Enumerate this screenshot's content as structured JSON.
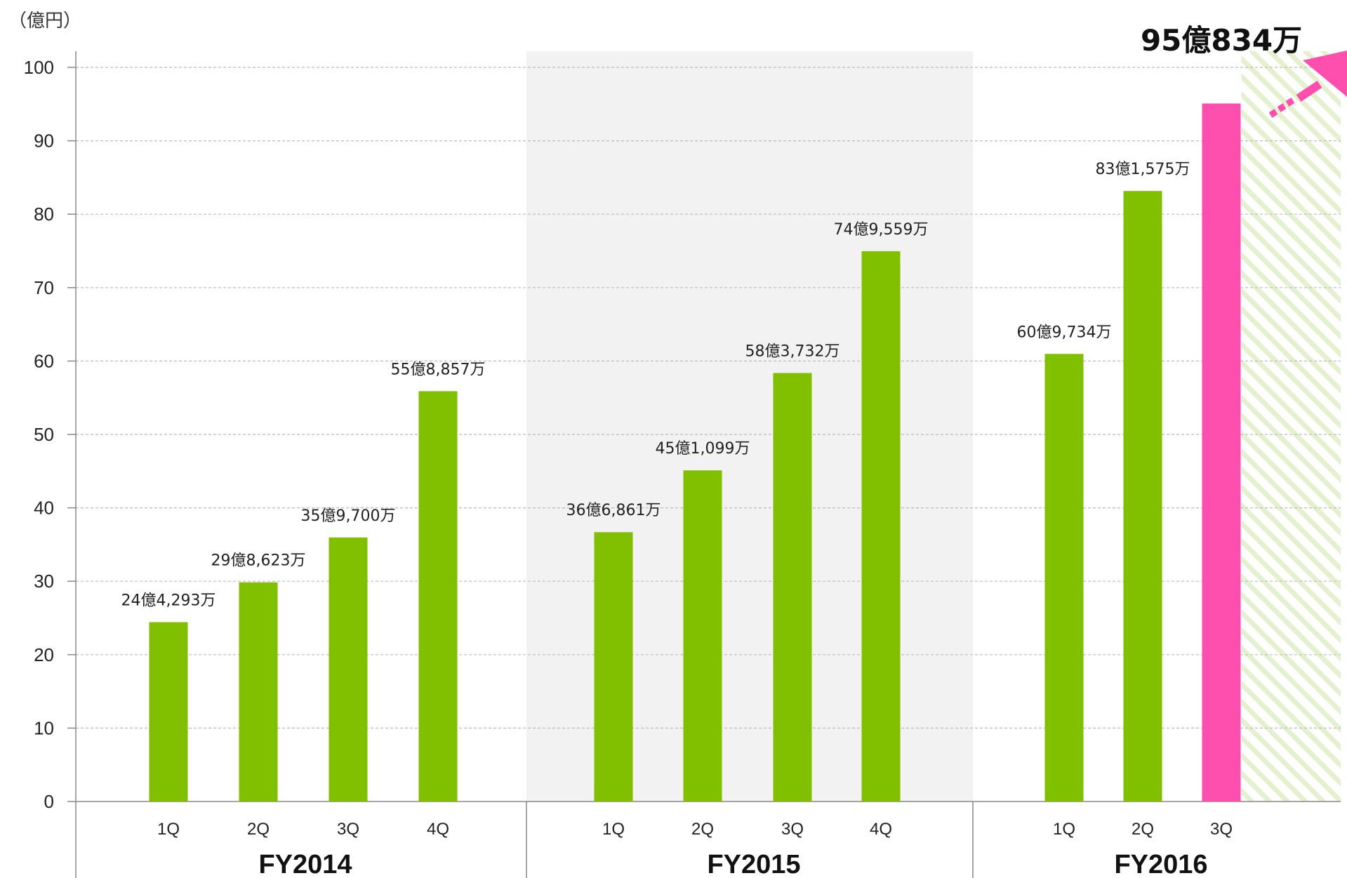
{
  "chart_data": {
    "type": "bar",
    "unit_label": "（億円）",
    "ylim": [
      0,
      100
    ],
    "yticks": [
      0,
      10,
      20,
      30,
      40,
      50,
      60,
      70,
      80,
      90,
      100
    ],
    "grid": true,
    "groups": [
      {
        "name": "FY2014",
        "shaded": false,
        "bars": [
          {
            "quarter": "1Q",
            "value": 24.43,
            "label": "24億4,293万"
          },
          {
            "quarter": "2Q",
            "value": 29.86,
            "label": "29億8,623万"
          },
          {
            "quarter": "3Q",
            "value": 35.97,
            "label": "35億9,700万"
          },
          {
            "quarter": "4Q",
            "value": 55.89,
            "label": "55億8,857万"
          }
        ]
      },
      {
        "name": "FY2015",
        "shaded": true,
        "bars": [
          {
            "quarter": "1Q",
            "value": 36.69,
            "label": "36億6,861万"
          },
          {
            "quarter": "2Q",
            "value": 45.11,
            "label": "45億1,099万"
          },
          {
            "quarter": "3Q",
            "value": 58.37,
            "label": "58億3,732万"
          },
          {
            "quarter": "4Q",
            "value": 74.96,
            "label": "74億9,559万"
          }
        ]
      },
      {
        "name": "FY2016",
        "shaded": false,
        "bars": [
          {
            "quarter": "1Q",
            "value": 60.97,
            "label": "60億9,734万"
          },
          {
            "quarter": "2Q",
            "value": 83.16,
            "label": "83億1,575万"
          },
          {
            "quarter": "3Q",
            "value": 95.08,
            "label": "95億834万",
            "highlight": true
          }
        ]
      }
    ],
    "colors": {
      "bar": "#80c000",
      "highlight": "#ff4fae",
      "shade": "#f2f2f2",
      "grid": "#bbbbbb",
      "axis": "#888888",
      "stripe": "#e4f1cf"
    }
  }
}
